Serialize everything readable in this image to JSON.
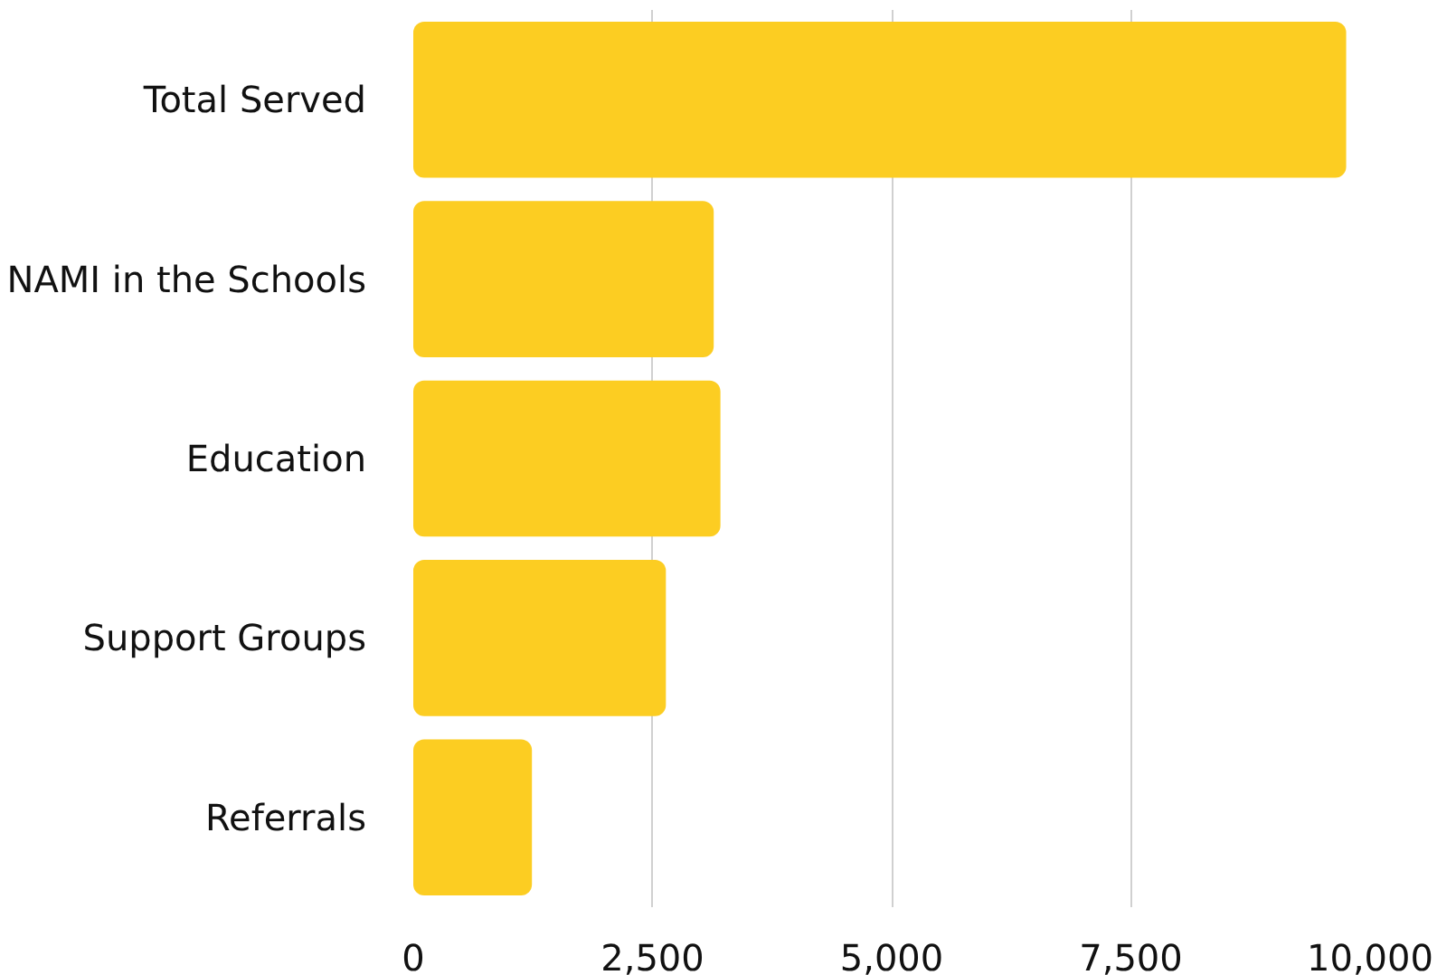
{
  "chart_data": {
    "type": "bar",
    "orientation": "horizontal",
    "categories": [
      "Total Served",
      "NAMI in the Schools",
      "Education",
      "Support Groups",
      "Referrals"
    ],
    "values": [
      9750,
      3140,
      3210,
      2640,
      1240
    ],
    "color": "#fccd22",
    "xlim": [
      0,
      10000
    ],
    "xticks": [
      0,
      {
        "value": 2500,
        "label": "2,500"
      },
      {
        "value": 5000,
        "label": "5,000"
      },
      {
        "value": 7500,
        "label": "7,500"
      },
      {
        "value": 10000,
        "label": "10,000"
      }
    ],
    "grid": "x"
  }
}
